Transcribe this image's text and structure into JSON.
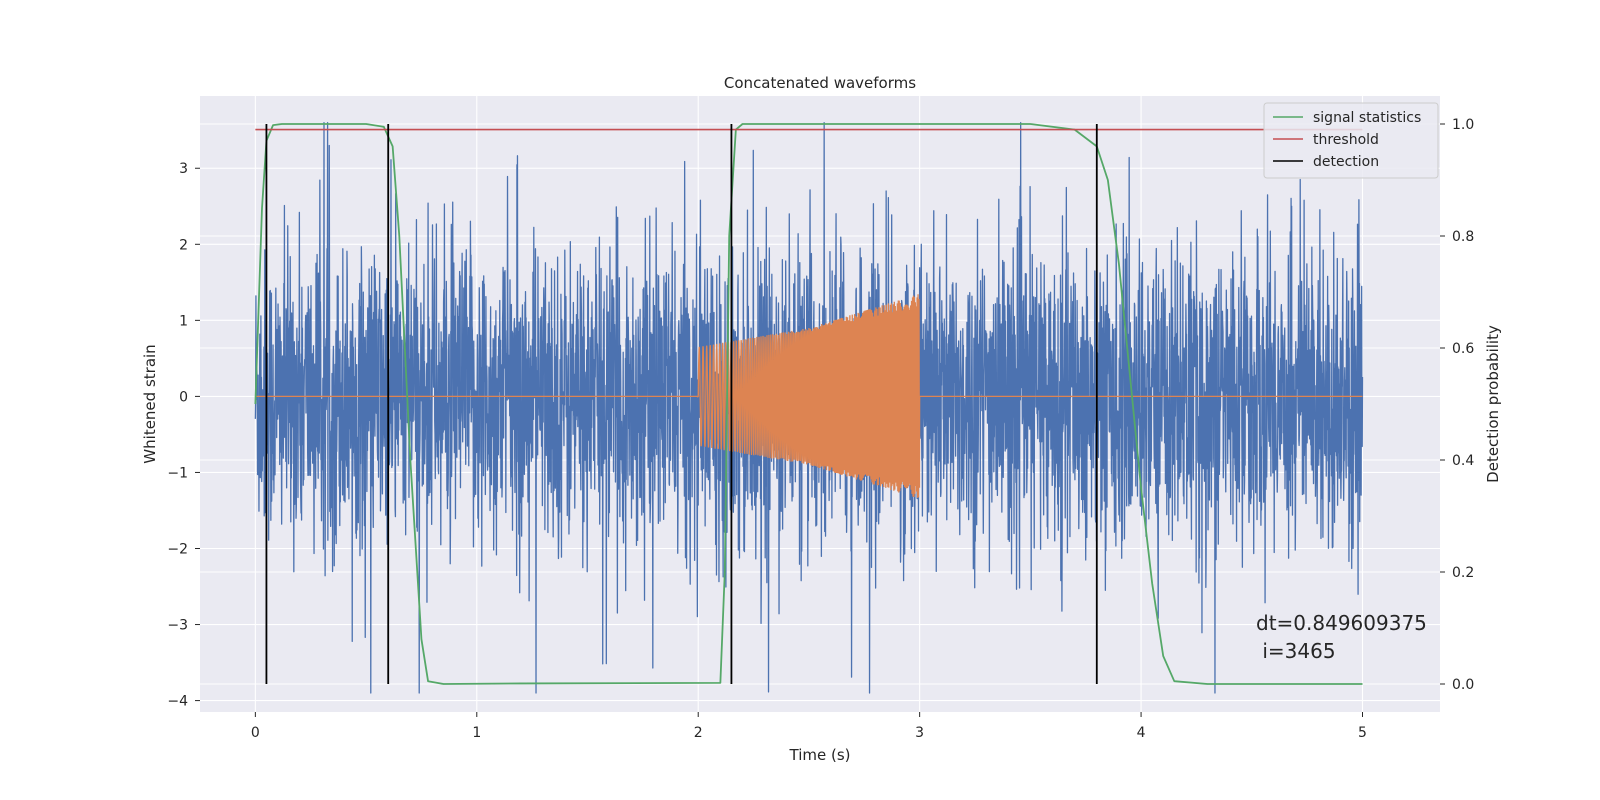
{
  "chart_data": {
    "type": "line",
    "title": "Concatenated waveforms",
    "xlabel": "Time (s)",
    "ylabel": "Whitened strain",
    "y2label": "Detection probability",
    "xlim": [
      -0.25,
      5.35
    ],
    "ylim": [
      -4.15,
      3.95
    ],
    "y2lim": [
      -0.05,
      1.05
    ],
    "x_ticks": [
      0,
      1,
      2,
      3,
      4,
      5
    ],
    "y_ticks": [
      -4,
      -3,
      -2,
      -1,
      0,
      1,
      2,
      3
    ],
    "y2_ticks": [
      0.0,
      0.2,
      0.4,
      0.6,
      0.8,
      1.0
    ],
    "x_tick_labels": [
      "0",
      "1",
      "2",
      "3",
      "4",
      "5"
    ],
    "y_tick_labels": [
      "−4",
      "−3",
      "−2",
      "−1",
      "0",
      "1",
      "2",
      "3"
    ],
    "y2_tick_labels": [
      "0.0",
      "0.2",
      "0.4",
      "0.6",
      "0.8",
      "1.0"
    ],
    "grid": true,
    "legend_position": "top-right",
    "colors": {
      "background": "#eaeaf2",
      "noise": "#4c72b0",
      "injection": "#dd8452",
      "signal_statistics": "#55a868",
      "threshold": "#c44e52",
      "detection": "#000000"
    },
    "series": [
      {
        "name": "",
        "kind": "noise",
        "x_range": [
          0,
          5
        ],
        "amplitude_envelope": 3.6
      },
      {
        "name": "",
        "kind": "chirp",
        "x": [
          0,
          2.0,
          2.0,
          2.5,
          3.0,
          3.0,
          5.0
        ],
        "envelope": [
          0,
          0,
          0.65,
          0.9,
          1.35,
          0,
          0
        ]
      },
      {
        "name": "signal statistics",
        "axis": "right",
        "x": [
          0,
          0.03,
          0.05,
          0.08,
          0.12,
          0.5,
          0.58,
          0.62,
          0.65,
          0.7,
          0.75,
          0.78,
          0.85,
          1.2,
          2.1,
          2.12,
          2.14,
          2.17,
          2.2,
          3.5,
          3.7,
          3.8,
          3.85,
          3.9,
          3.95,
          4.0,
          4.05,
          4.1,
          4.15,
          4.3,
          5.0
        ],
        "values": [
          0.5,
          0.85,
          0.97,
          0.998,
          1.0,
          1.0,
          0.995,
          0.96,
          0.8,
          0.4,
          0.08,
          0.005,
          0.0,
          0.001,
          0.002,
          0.2,
          0.8,
          0.99,
          1.0,
          1.0,
          0.99,
          0.96,
          0.9,
          0.75,
          0.55,
          0.35,
          0.18,
          0.05,
          0.005,
          0.0,
          0.0
        ]
      },
      {
        "name": "threshold",
        "axis": "right",
        "x": [
          0,
          5
        ],
        "values": [
          0.99,
          0.99
        ]
      },
      {
        "name": "detection",
        "axis": "right",
        "kind": "vertical_lines",
        "x": [
          0.05,
          0.6,
          2.15,
          3.8
        ],
        "range": [
          0,
          1
        ]
      }
    ],
    "legend": [
      "signal statistics",
      "threshold",
      "detection"
    ],
    "annotation": {
      "line1": "dt=0.849609375",
      "line2": " i=3465"
    }
  }
}
